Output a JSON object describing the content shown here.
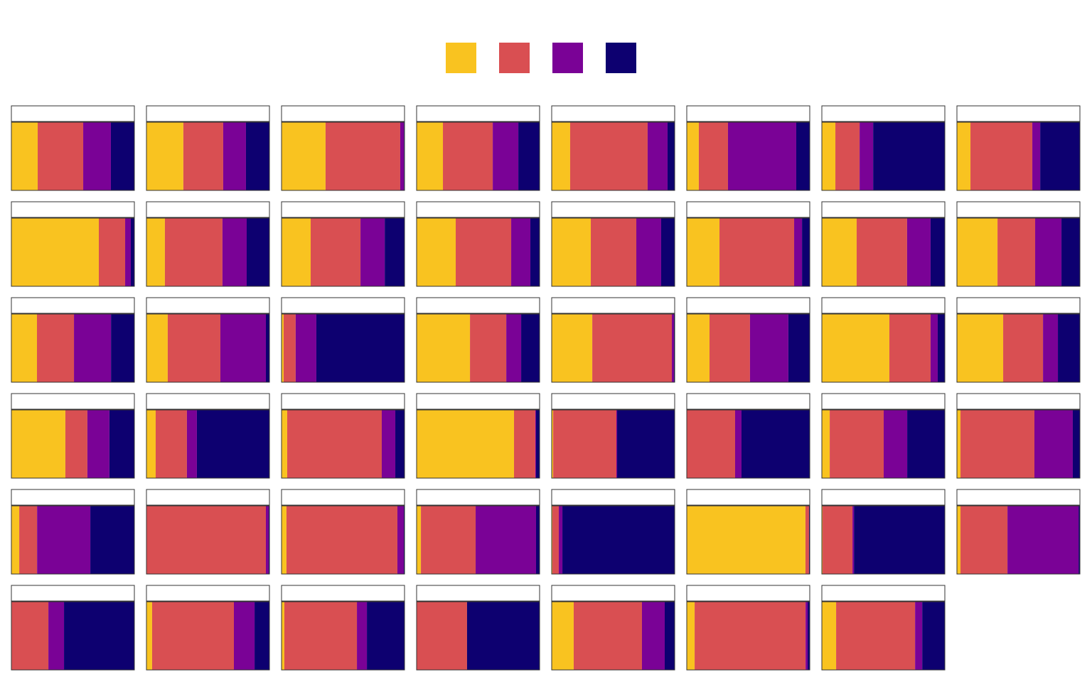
{
  "chart_data": {
    "type": "bar",
    "stacked": true,
    "orientation": "horizontal",
    "xlim": [
      0,
      100
    ],
    "series": [
      {
        "color": "#f9c320",
        "values": [
          21.4,
          30,
          35.8,
          21.4,
          15,
          9.8,
          11,
          11,
          71.1,
          15,
          23.7,
          31.8,
          31.8,
          26.6,
          28.3,
          33,
          20.8,
          17.3,
          1.7,
          43.4,
          33,
          18.5,
          54.9,
          37.6,
          43.9,
          7.5,
          4.6,
          79.2,
          1.2,
          0,
          6.4,
          2.9,
          6.4,
          0,
          4,
          3.5,
          0.6,
          96.5,
          0.6,
          2.9,
          0,
          4.6,
          2.3,
          0,
          17.9,
          6.4,
          11.6
        ]
      },
      {
        "color": "#d94f52",
        "values": [
          37,
          32.4,
          60.7,
          40.5,
          63,
          23.7,
          19.7,
          50.3,
          21.4,
          46.8,
          40.5,
          45.1,
          37,
          60.7,
          41,
          30.6,
          30.1,
          42.8,
          9.8,
          29.5,
          64.7,
          32.9,
          33.5,
          32.4,
          17.9,
          25.4,
          76.9,
          17.3,
          51.4,
          39.3,
          43.9,
          60.1,
          14.5,
          97.1,
          90.2,
          44.5,
          5.2,
          2.9,
          24.3,
          38.2,
          30.1,
          66.5,
          59,
          41,
          55.5,
          90.2,
          64.2
        ]
      },
      {
        "color": "#7a0296",
        "values": [
          22.5,
          18.5,
          3,
          20.8,
          16.2,
          55.5,
          11,
          6.4,
          4.6,
          19.7,
          19.7,
          15.6,
          20.2,
          6.4,
          19.1,
          21.4,
          30.1,
          37,
          16.8,
          12.1,
          1.7,
          31.2,
          5.8,
          12.1,
          17.9,
          8.1,
          11,
          0.6,
          0.6,
          5.2,
          19.1,
          31.2,
          43.3,
          2.3,
          5.2,
          49.1,
          2.9,
          0,
          1.2,
          57.8,
          12.7,
          16.8,
          8.1,
          0,
          18.5,
          1.7,
          5.8
        ]
      },
      {
        "color": "#0d0070",
        "values": [
          19.1,
          19.1,
          0.5,
          17.3,
          5.8,
          11,
          58.3,
          32.3,
          2.9,
          18.5,
          16.1,
          7.5,
          11,
          6.3,
          11.6,
          15,
          19,
          2.9,
          71.7,
          15,
          0.6,
          17.4,
          5.8,
          17.9,
          20.3,
          59,
          7.5,
          2.9,
          46.8,
          55.5,
          30.6,
          5.8,
          35.8,
          0.6,
          0.6,
          2.9,
          91.3,
          0.6,
          73.9,
          1.1,
          57.2,
          12.1,
          30.6,
          59,
          8.1,
          1.7,
          18.4
        ]
      }
    ]
  }
}
